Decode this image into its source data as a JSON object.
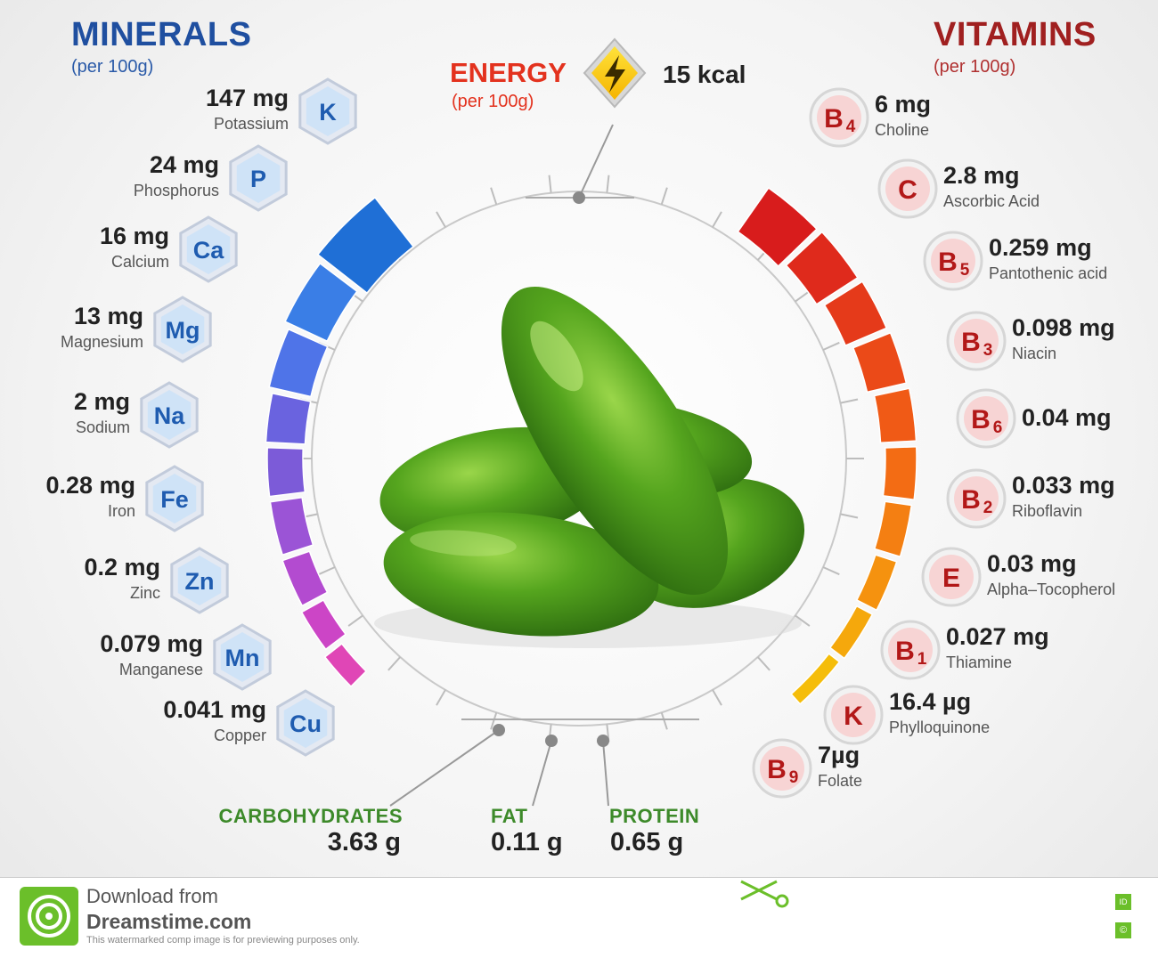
{
  "minerals_header": {
    "title": "MINERALS",
    "subtitle": "(per 100g)"
  },
  "vitamins_header": {
    "title": "VITAMINS",
    "subtitle": "(per 100g)"
  },
  "energy": {
    "title": "ENERGY",
    "subtitle": "(per 100g)",
    "value": "15 kcal"
  },
  "minerals": [
    {
      "symbol": "K",
      "amount": "147 mg",
      "name": "Potassium"
    },
    {
      "symbol": "P",
      "amount": "24 mg",
      "name": "Phosphorus"
    },
    {
      "symbol": "Ca",
      "amount": "16 mg",
      "name": "Calcium"
    },
    {
      "symbol": "Mg",
      "amount": "13 mg",
      "name": "Magnesium"
    },
    {
      "symbol": "Na",
      "amount": "2 mg",
      "name": "Sodium"
    },
    {
      "symbol": "Fe",
      "amount": "0.28 mg",
      "name": "Iron"
    },
    {
      "symbol": "Zn",
      "amount": "0.2 mg",
      "name": "Zinc"
    },
    {
      "symbol": "Mn",
      "amount": "0.079 mg",
      "name": "Manganese"
    },
    {
      "symbol": "Cu",
      "amount": "0.041 mg",
      "name": "Copper"
    }
  ],
  "vitamins": [
    {
      "letter": "B",
      "sub": "4",
      "amount": "6 mg",
      "name": "Choline"
    },
    {
      "letter": "C",
      "sub": "",
      "amount": "2.8 mg",
      "name": "Ascorbic Acid"
    },
    {
      "letter": "B",
      "sub": "5",
      "amount": "0.259 mg",
      "name": "Pantothenic acid"
    },
    {
      "letter": "B",
      "sub": "3",
      "amount": "0.098 mg",
      "name": "Niacin"
    },
    {
      "letter": "B",
      "sub": "6",
      "amount": "0.04 mg",
      "name": ""
    },
    {
      "letter": "B",
      "sub": "2",
      "amount": "0.033 mg",
      "name": "Riboflavin"
    },
    {
      "letter": "E",
      "sub": "",
      "amount": "0.03 mg",
      "name": "Alpha–Tocopherol"
    },
    {
      "letter": "B",
      "sub": "1",
      "amount": "0.027 mg",
      "name": "Thiamine"
    },
    {
      "letter": "K",
      "sub": "",
      "amount": "16.4 µg",
      "name": "Phylloquinone"
    },
    {
      "letter": "B",
      "sub": "9",
      "amount": "7µg",
      "name": "Folate"
    }
  ],
  "macros": {
    "carbs": {
      "label": "CARBOHYDRATES",
      "value": "3.63 g"
    },
    "fat": {
      "label": "FAT",
      "value": "0.11 g"
    },
    "protein": {
      "label": "PROTEIN",
      "value": "0.65 g"
    }
  },
  "footer": {
    "line1": "Download from",
    "line2": "Dreamstime.com",
    "line3": "This watermarked comp image is for previewing purposes only."
  },
  "colors": {
    "minerals_gradient": [
      "#1f6fd6",
      "#3a7ee6",
      "#4f74e8",
      "#6a63df",
      "#7c5bd8",
      "#9b54d6",
      "#b34bd0",
      "#cc45c6",
      "#e046b6"
    ],
    "vitamins_gradient": [
      "#d81c1c",
      "#df2a1c",
      "#e53a1a",
      "#eb4a18",
      "#f05a16",
      "#f36c14",
      "#f47f12",
      "#f5920f",
      "#f5a80c",
      "#f5bd0a"
    ],
    "macro_green": "#3d8a2a"
  }
}
